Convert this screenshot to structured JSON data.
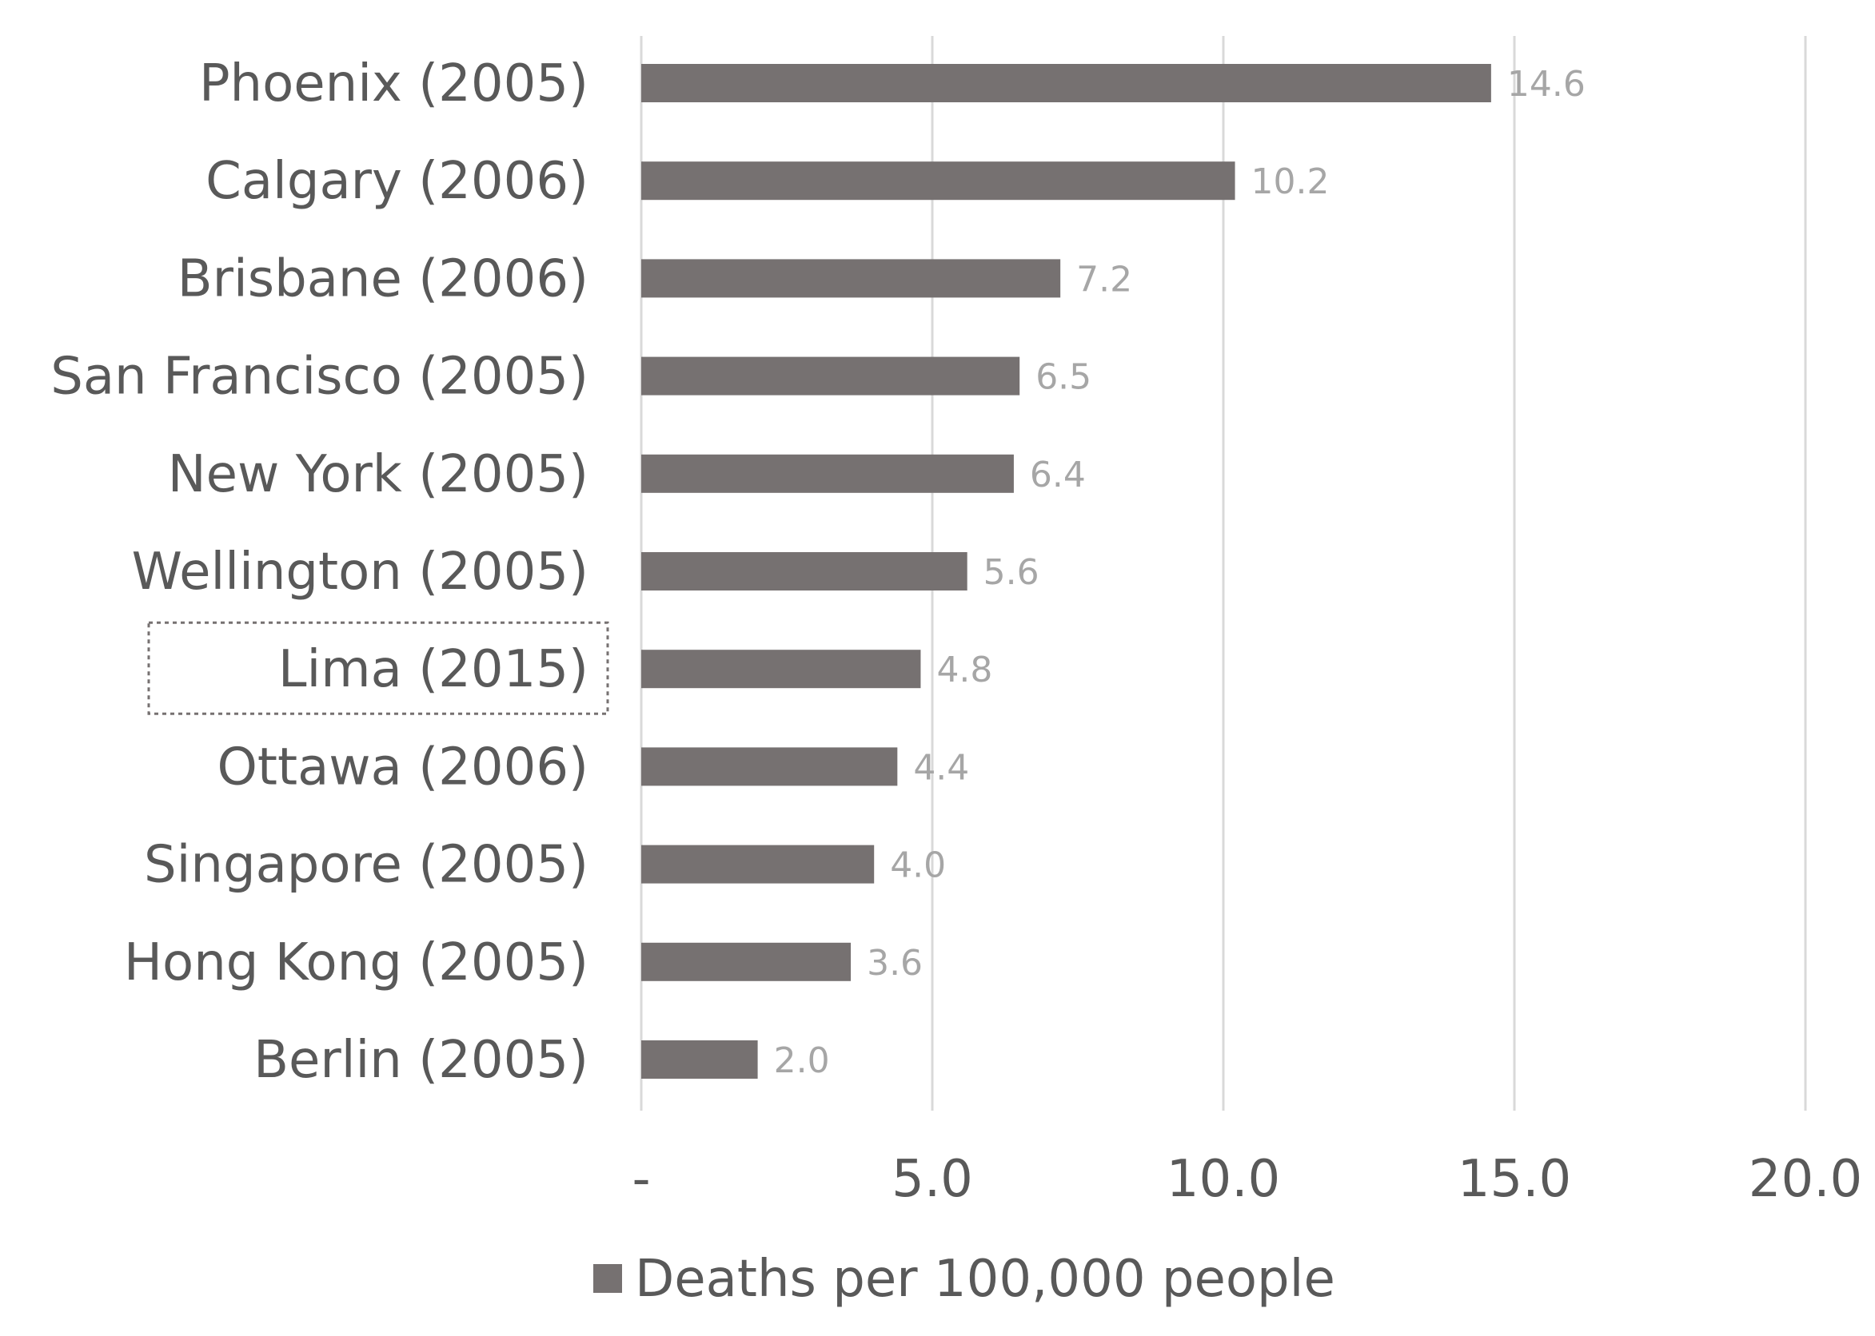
{
  "chart_data": {
    "type": "bar",
    "orientation": "horizontal",
    "categories": [
      "Phoenix (2005)",
      "Calgary (2006)",
      "Brisbane (2006)",
      "San Francisco (2005)",
      "New York (2005)",
      "Wellington (2005)",
      "Lima (2015)",
      "Ottawa (2006)",
      "Singapore (2005)",
      "Hong Kong (2005)",
      "Berlin (2005)"
    ],
    "value_labels": [
      "14.6",
      "10.2",
      "7.2",
      "6.5",
      "6.4",
      "5.6",
      "4.8",
      "4.4",
      "4.0",
      "3.6",
      "2.0"
    ],
    "series": [
      {
        "name": "Deaths per 100,000 people",
        "values": [
          14.6,
          10.2,
          7.2,
          6.5,
          6.4,
          5.6,
          4.8,
          4.4,
          4.0,
          3.6,
          2.0
        ],
        "color": "#767171"
      }
    ],
    "x_ticks": [
      0,
      5,
      10,
      15,
      20
    ],
    "x_tick_labels": [
      "-",
      "5.0",
      "10.0",
      "15.0",
      "20.0"
    ],
    "xlim": [
      0,
      20
    ],
    "grid": "vertical",
    "legend_position": "bottom",
    "highlighted_category": "Lima (2015)",
    "colors": {
      "bar": "#767171",
      "gridline": "#d9d9d9",
      "category_text": "#595959",
      "value_text": "#a6a6a6"
    }
  }
}
